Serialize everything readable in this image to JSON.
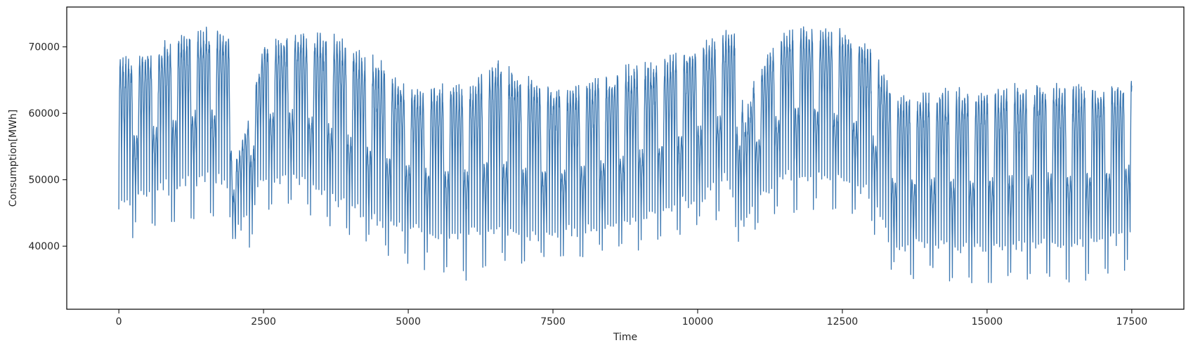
{
  "chart_data": {
    "type": "line",
    "title": "",
    "xlabel": "Time",
    "ylabel": "Consumption[MWh]",
    "xlim": [
      -900,
      18400
    ],
    "ylim": [
      30500,
      76000
    ],
    "x_ticks": [
      0,
      2500,
      5000,
      7500,
      10000,
      12500,
      15000,
      17500
    ],
    "x_tick_labels": [
      "0",
      "2500",
      "5000",
      "7500",
      "10000",
      "12500",
      "15000",
      "17500"
    ],
    "y_ticks": [
      40000,
      50000,
      60000,
      70000
    ],
    "y_tick_labels": [
      "40000",
      "50000",
      "60000",
      "70000"
    ],
    "grid": false,
    "series": [
      {
        "color": "#3a76b0",
        "x": [
          0,
          500,
          1000,
          1500,
          1900,
          2000,
          2200,
          2500,
          3000,
          3500,
          4000,
          4500,
          4900,
          5000,
          5500,
          6000,
          6500,
          7000,
          7500,
          8000,
          8500,
          9000,
          9500,
          10000,
          10500,
          10700,
          10800,
          11000,
          11500,
          12000,
          12500,
          13000,
          13300,
          13500,
          14000,
          14500,
          15000,
          15500,
          16000,
          16500,
          17000,
          17500
        ],
        "upper": [
          68000,
          69500,
          71500,
          72500,
          72000,
          52000,
          58000,
          70500,
          72000,
          72000,
          71000,
          68000,
          64500,
          64000,
          64000,
          64000,
          68000,
          66000,
          64000,
          64500,
          66000,
          67500,
          68500,
          70000,
          72500,
          72000,
          58000,
          66000,
          72500,
          73000,
          72500,
          70000,
          65000,
          63500,
          63500,
          63500,
          64000,
          64500,
          64500,
          64500,
          64000,
          65500
        ],
        "lower": [
          42000,
          41000,
          42500,
          44000,
          45500,
          36000,
          36000,
          45000,
          45000,
          44000,
          41000,
          38500,
          37000,
          36500,
          36000,
          35000,
          36500,
          37000,
          38000,
          38000,
          38500,
          39500,
          40500,
          42000,
          45000,
          40000,
          38000,
          43000,
          44500,
          45500,
          45000,
          43000,
          34500,
          35000,
          34500,
          33500,
          34500,
          34500,
          34500,
          34000,
          35000,
          36000
        ],
        "daily_low": [
          47000,
          48500,
          50000,
          51500,
          50500,
          43000,
          45500,
          51500,
          51000,
          49000,
          46500,
          44500,
          44000,
          44000,
          42500,
          42500,
          43500,
          42500,
          42500,
          43000,
          43500,
          45000,
          46500,
          48000,
          51000,
          46000,
          44000,
          48000,
          51500,
          51500,
          50500,
          48500,
          41500,
          41000,
          41500,
          41000,
          41000,
          41000,
          41500,
          41500,
          42000,
          43000
        ],
        "daily_high": [
          62000,
          64000,
          66000,
          67500,
          66000,
          50000,
          55000,
          66000,
          67500,
          66000,
          63500,
          60500,
          58500,
          58000,
          57500,
          58000,
          60500,
          58500,
          57500,
          58500,
          60000,
          61500,
          62500,
          65000,
          67000,
          66000,
          54000,
          61500,
          67500,
          68000,
          67000,
          63500,
          57500,
          56500,
          56500,
          56500,
          57000,
          57500,
          57500,
          58000,
          57500,
          59000
        ]
      }
    ]
  }
}
